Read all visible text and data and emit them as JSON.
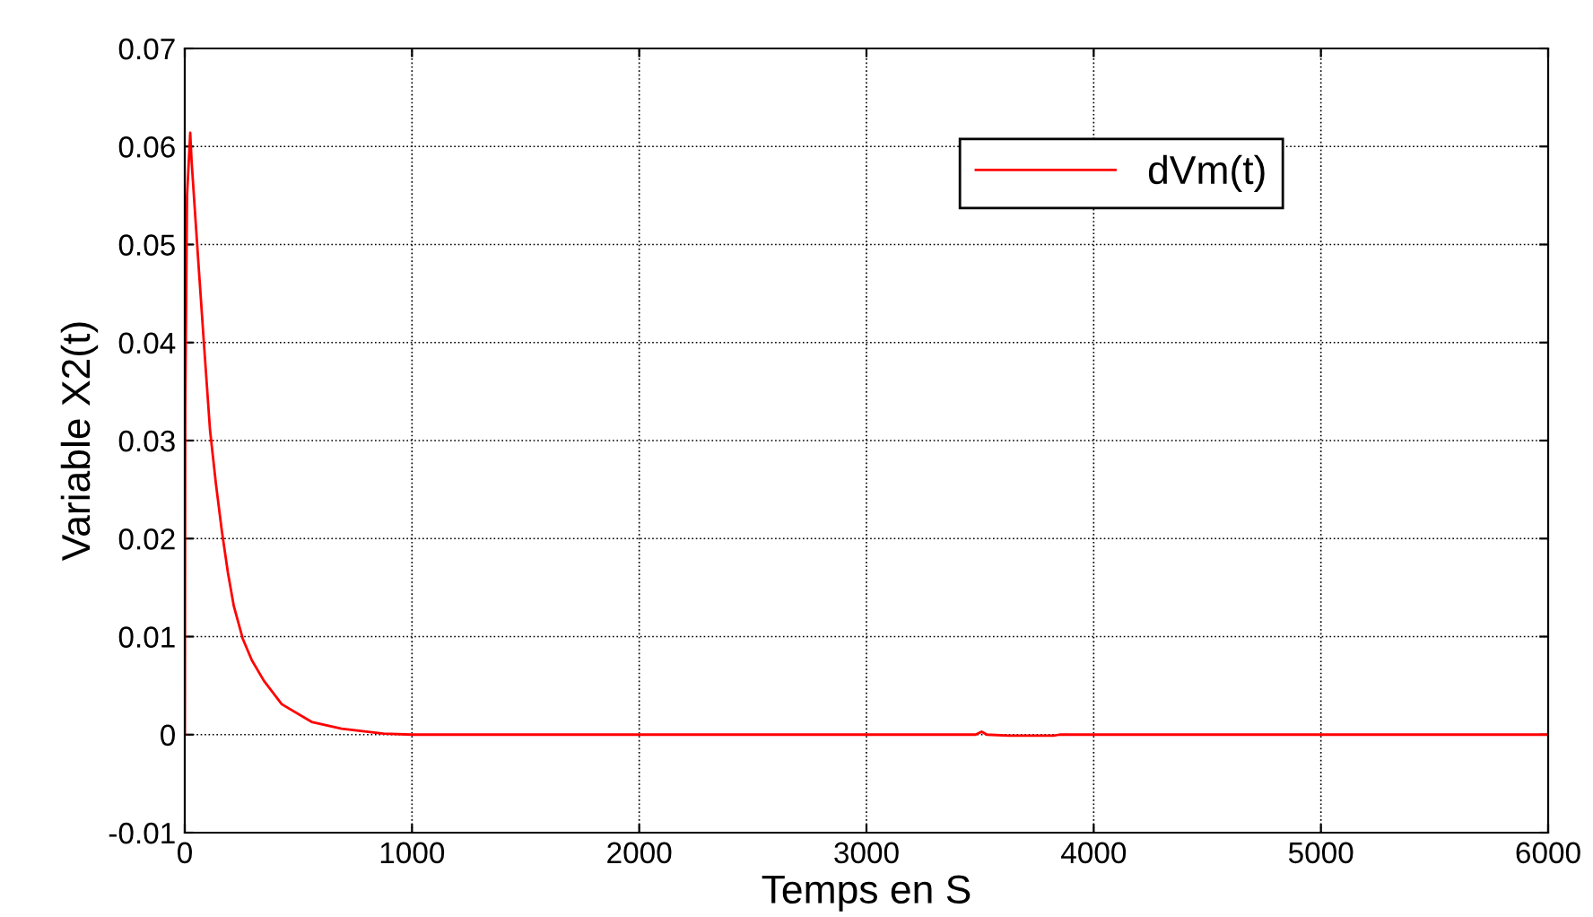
{
  "chart_data": {
    "type": "line",
    "xlabel": "Temps en S",
    "ylabel": "Variable X2(t)",
    "series": [
      {
        "name": "dVm(t)",
        "color": "#ff0000",
        "x": [
          0,
          2,
          10,
          24,
          30,
          58,
          84,
          111,
          137,
          163,
          190,
          216,
          255,
          295,
          348,
          427,
          558,
          690,
          874,
          1000,
          2000,
          3000,
          3480,
          3507,
          3530,
          3628,
          3823,
          3850,
          4000,
          5000,
          6000
        ],
        "values": [
          0,
          0.0333,
          0.055,
          0.0614,
          0.0585,
          0.0488,
          0.04,
          0.0311,
          0.0256,
          0.0208,
          0.0165,
          0.0131,
          0.0098,
          0.0076,
          0.0055,
          0.0031,
          0.0013,
          0.0006,
          0.0001,
          0,
          0,
          0,
          0,
          0.0003,
          0,
          -0.0001,
          -0.0001,
          0,
          0,
          0,
          0
        ]
      }
    ],
    "xlim": [
      0,
      6000
    ],
    "xticks": [
      0,
      1000,
      2000,
      3000,
      4000,
      5000,
      6000
    ],
    "ylim": [
      -0.01,
      0.07
    ],
    "yticks": [
      -0.01,
      0,
      0.01,
      0.02,
      0.03,
      0.04,
      0.05,
      0.06,
      0.07
    ],
    "grid": true,
    "legend": "top right",
    "line_style": "solid",
    "marker": "none"
  }
}
